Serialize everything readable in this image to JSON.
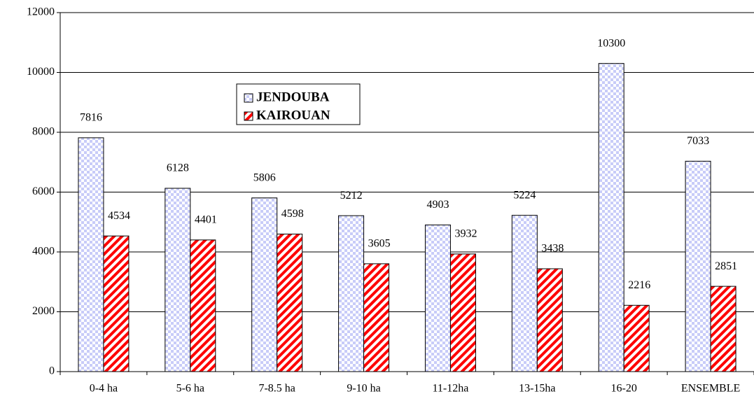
{
  "chart_data": {
    "type": "bar",
    "categories": [
      "0-4 ha",
      "5-6 ha",
      "7-8.5 ha",
      "9-10 ha",
      "11-12ha",
      "13-15ha",
      "16-20",
      "ENSEMBLE"
    ],
    "series": [
      {
        "name": "JENDOUBA",
        "color": "#c8ccf8",
        "values": [
          7816,
          6128,
          5806,
          5212,
          4903,
          5224,
          10300,
          7033
        ]
      },
      {
        "name": "KAIROUAN",
        "color": "#ff0000",
        "values": [
          4534,
          4401,
          4598,
          3605,
          3932,
          3438,
          2216,
          2851
        ]
      }
    ],
    "ylim": [
      0,
      12000
    ],
    "yticks": [
      0,
      2000,
      4000,
      6000,
      8000,
      10000,
      12000
    ],
    "grid": true
  }
}
